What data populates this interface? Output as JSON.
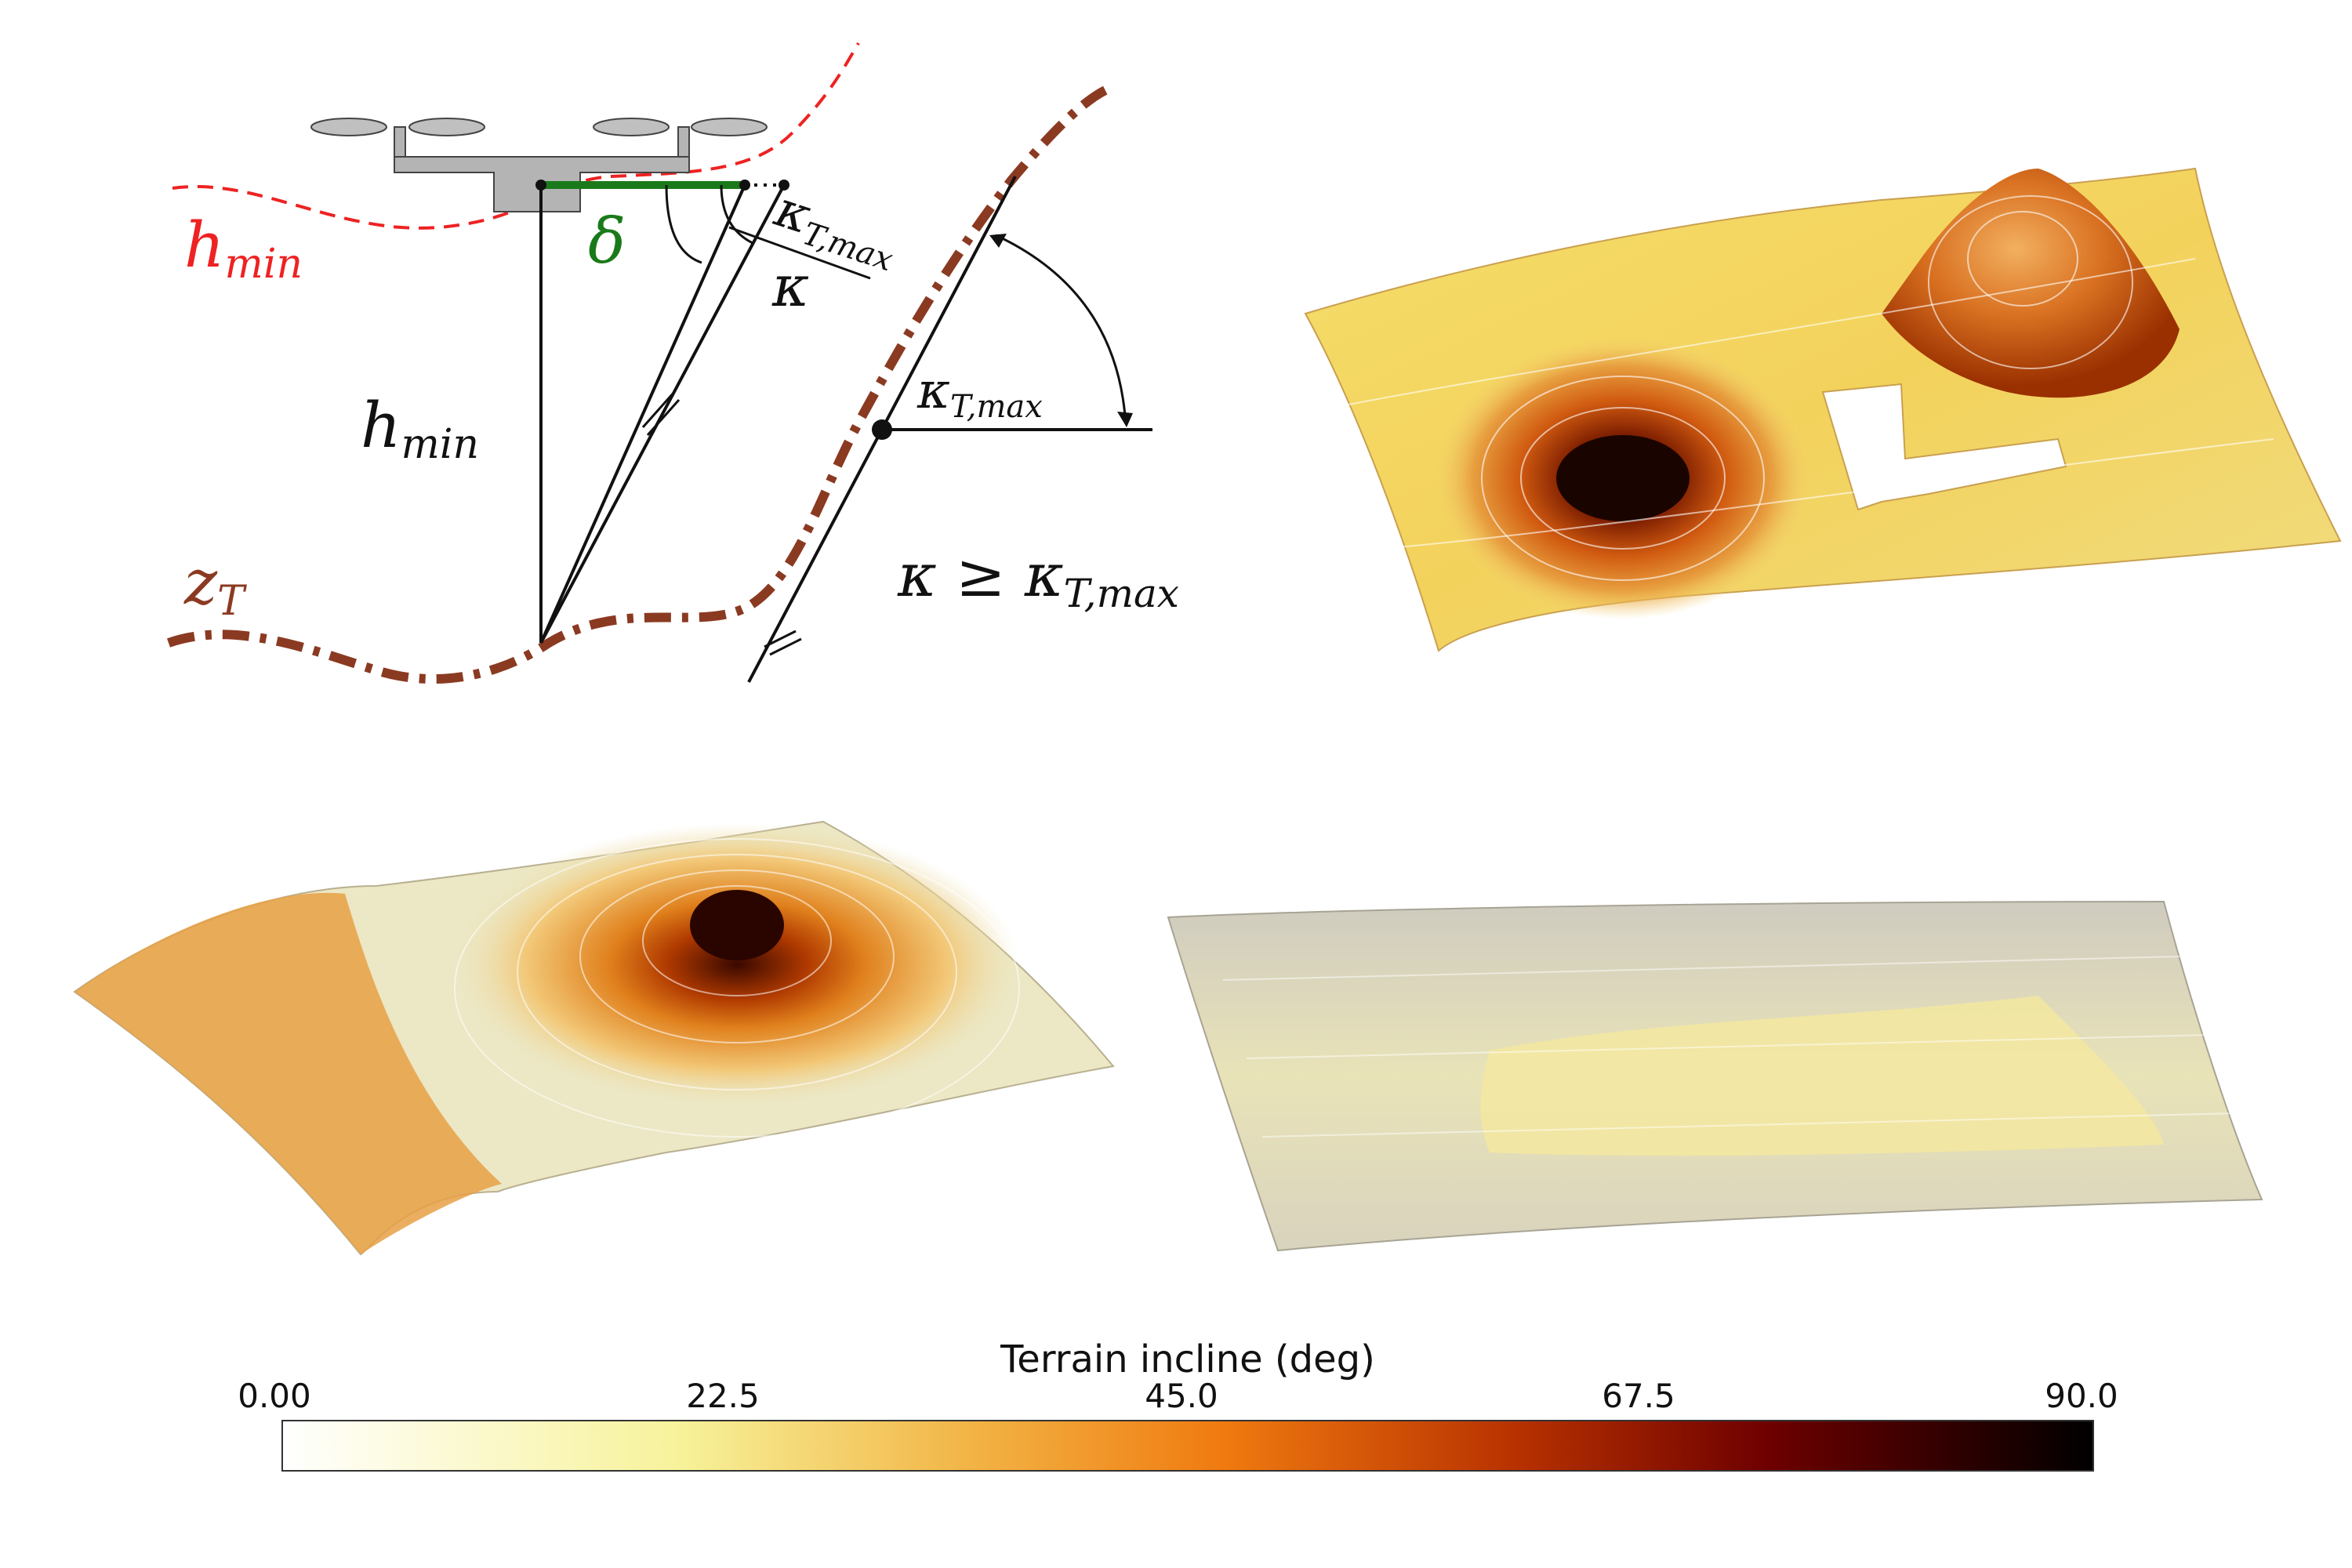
{
  "diagram": {
    "labels": {
      "hmin_red": "h",
      "hmin_red_sub": "min",
      "delta": "δ",
      "kappa_tmax_top": "κ",
      "kappa_tmax_top_sub": "T,max",
      "kappa": "κ",
      "hmin_black": "h",
      "hmin_black_sub": "min",
      "kappa_tmax_right": "κ",
      "kappa_tmax_right_sub": "T,max",
      "inequality": "κ ≥ κ",
      "inequality_sub": "T,max",
      "zt": "z",
      "zt_sub": "T"
    },
    "colors": {
      "hmin_curve": "#ee2222",
      "terrain_curve": "#8b3a22",
      "delta_segment": "#1a7a1a",
      "drone_body": "#b4b4b4"
    }
  },
  "colorbar": {
    "title": "Terrain incline (deg)",
    "ticks": [
      "0.00",
      "22.5",
      "45.0",
      "67.5",
      "90.0"
    ],
    "range": [
      0,
      90
    ],
    "colormap": [
      "#ffffff",
      "#f5f0a0",
      "#f0a030",
      "#e06a10",
      "#a02000",
      "#5a0000",
      "#000000"
    ]
  }
}
